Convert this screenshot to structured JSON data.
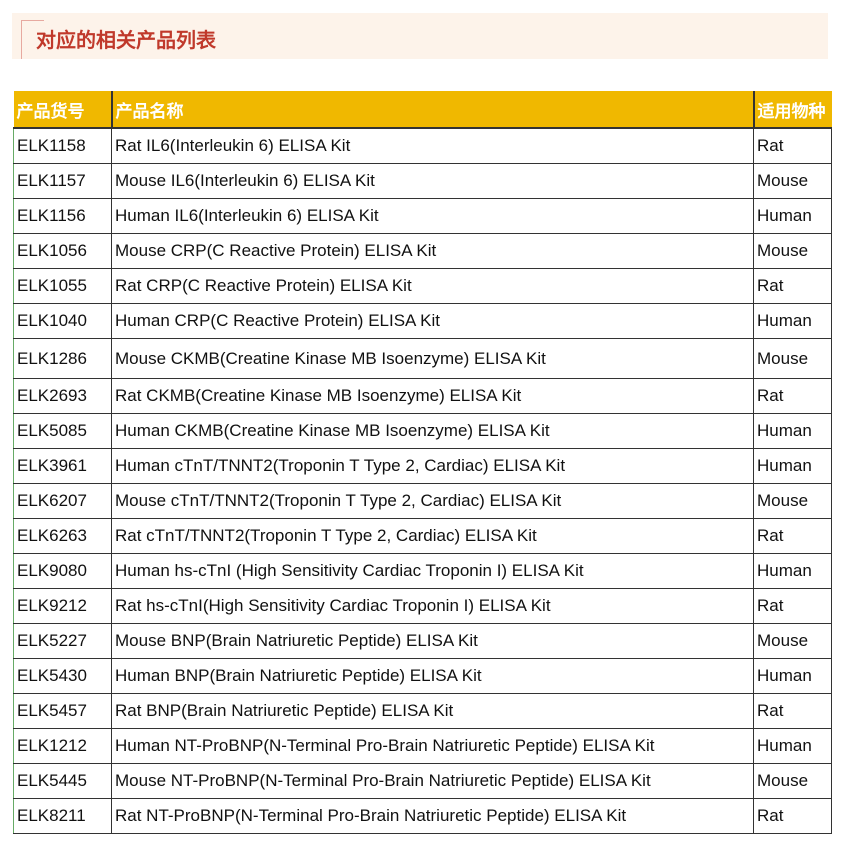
{
  "title": "对应的相关产品列表",
  "header_color": "#f0b800",
  "title_color": "#c0392b",
  "columns": [
    "产品货号",
    "产品名称",
    "适用物种"
  ],
  "rows": [
    [
      "ELK1158",
      "Rat IL6(Interleukin 6) ELISA Kit",
      "Rat"
    ],
    [
      "ELK1157",
      "Mouse IL6(Interleukin 6) ELISA Kit",
      "Mouse"
    ],
    [
      "ELK1156",
      "Human IL6(Interleukin 6) ELISA Kit",
      "Human"
    ],
    [
      "ELK1056",
      "Mouse CRP(C Reactive Protein) ELISA Kit",
      "Mouse"
    ],
    [
      "ELK1055",
      "Rat CRP(C Reactive Protein) ELISA Kit",
      "Rat"
    ],
    [
      "ELK1040",
      "Human CRP(C Reactive Protein) ELISA Kit",
      "Human"
    ],
    [
      "ELK1286",
      "Mouse CKMB(Creatine Kinase MB Isoenzyme) ELISA Kit",
      "Mouse"
    ],
    [
      "ELK2693",
      "Rat CKMB(Creatine Kinase MB Isoenzyme) ELISA Kit",
      "Rat"
    ],
    [
      "ELK5085",
      "Human CKMB(Creatine Kinase MB Isoenzyme) ELISA Kit",
      "Human"
    ],
    [
      "ELK3961",
      "Human cTnT/TNNT2(Troponin T Type 2, Cardiac) ELISA Kit",
      "Human"
    ],
    [
      "ELK6207",
      "Mouse cTnT/TNNT2(Troponin T Type 2, Cardiac) ELISA Kit",
      "Mouse"
    ],
    [
      "ELK6263",
      "Rat cTnT/TNNT2(Troponin T Type 2, Cardiac) ELISA Kit",
      "Rat"
    ],
    [
      "ELK9080",
      "Human hs-cTnI (High Sensitivity Cardiac Troponin I) ELISA Kit",
      "Human"
    ],
    [
      "ELK9212",
      "Rat hs-cTnI(High Sensitivity Cardiac Troponin I) ELISA Kit",
      "Rat"
    ],
    [
      "ELK5227",
      "Mouse BNP(Brain Natriuretic Peptide) ELISA Kit",
      "Mouse"
    ],
    [
      "ELK5430",
      "Human BNP(Brain Natriuretic Peptide) ELISA Kit",
      "Human"
    ],
    [
      "ELK5457",
      "Rat BNP(Brain Natriuretic Peptide) ELISA Kit",
      "Rat"
    ],
    [
      "ELK1212",
      "Human NT-ProBNP(N-Terminal Pro-Brain Natriuretic Peptide) ELISA Kit",
      "Human"
    ],
    [
      "ELK5445",
      "Mouse NT-ProBNP(N-Terminal Pro-Brain Natriuretic Peptide) ELISA Kit",
      "Mouse"
    ],
    [
      "ELK8211",
      "Rat NT-ProBNP(N-Terminal Pro-Brain Natriuretic Peptide) ELISA Kit",
      "Rat"
    ]
  ]
}
